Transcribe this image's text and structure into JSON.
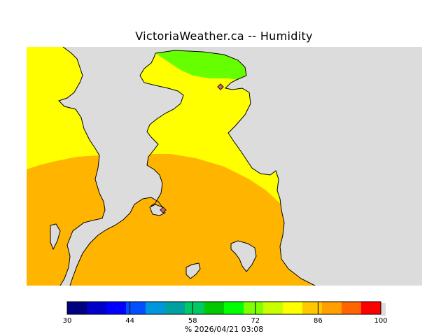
{
  "title": "VictoriaWeather.ca -- Humidity",
  "footer": "%  2026/04/21 03:08",
  "colors": {
    "land_background": "#dcdcdc",
    "coast_line": "#000000",
    "station_marker": "#d06060"
  },
  "legend": {
    "min": 30,
    "max": 100,
    "step": 4.375,
    "tick_labels": [
      "30",
      "44",
      "58",
      "72",
      "86",
      "100"
    ],
    "tick_values": [
      30,
      44,
      58,
      72,
      86,
      100
    ],
    "bands": [
      "#000080",
      "#0000c8",
      "#0000ff",
      "#0050ff",
      "#0096dc",
      "#00a0a0",
      "#00c864",
      "#00c800",
      "#00ff00",
      "#80ff00",
      "#c8ff00",
      "#ffff00",
      "#ffc800",
      "#ffa000",
      "#ff6400",
      "#ff0000"
    ]
  },
  "contour_levels": [
    {
      "label": "green zone",
      "color": "#66ff00"
    },
    {
      "label": "yellow zone",
      "color": "#ffff00"
    },
    {
      "label": "orange zone",
      "color": "#ffb400"
    }
  ]
}
